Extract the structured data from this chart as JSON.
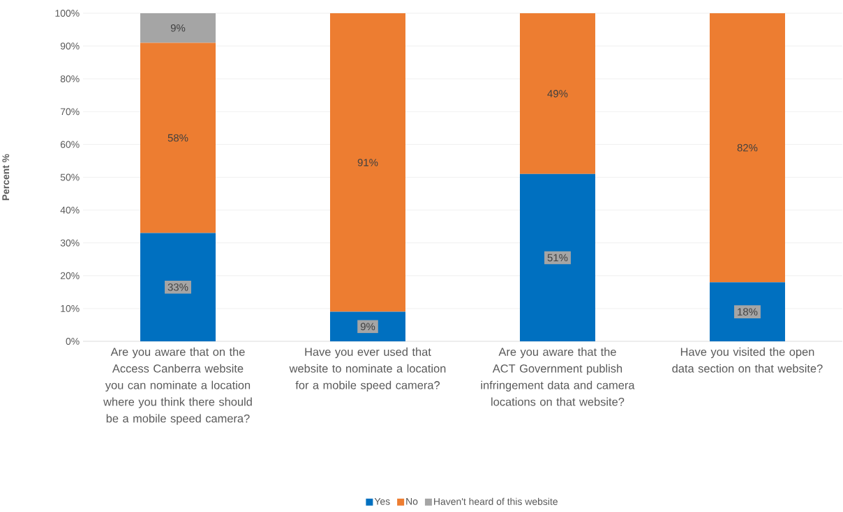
{
  "chart_data": {
    "type": "bar",
    "stacked": true,
    "ylabel": "Percent %",
    "categories": [
      "Are you aware that on the Access Canberra website you can nominate a location where you think there should be a mobile speed camera?",
      "Have you ever used that website to nominate a location for a mobile speed camera?",
      "Are you aware that the ACT Government publish infringement data and camera locations on that website?",
      "Have you visited the open data section on that website?"
    ],
    "series": [
      {
        "name": "Yes",
        "color": "#0070c0",
        "values": [
          33,
          9,
          51,
          18
        ],
        "value_labels": [
          "33%",
          "9%",
          "51%",
          "18%"
        ]
      },
      {
        "name": "No",
        "color": "#ed7d31",
        "values": [
          58,
          91,
          49,
          82
        ],
        "value_labels": [
          "58%",
          "91%",
          "49%",
          "82%"
        ]
      },
      {
        "name": "Haven't heard of this website",
        "color": "#a5a5a5",
        "values": [
          9,
          null,
          null,
          null
        ],
        "value_labels": [
          "9%",
          null,
          null,
          null
        ]
      }
    ],
    "ylim": [
      0,
      100
    ],
    "yticks": [
      {
        "value": 0,
        "label": "0%"
      },
      {
        "value": 10,
        "label": "10%"
      },
      {
        "value": 20,
        "label": "20%"
      },
      {
        "value": 30,
        "label": "30%"
      },
      {
        "value": 40,
        "label": "40%"
      },
      {
        "value": 50,
        "label": "50%"
      },
      {
        "value": 60,
        "label": "60%"
      },
      {
        "value": 70,
        "label": "70%"
      },
      {
        "value": 80,
        "label": "80%"
      },
      {
        "value": 90,
        "label": "90%"
      },
      {
        "value": 100,
        "label": "100%"
      }
    ],
    "grid": "y",
    "legend": "bottom"
  }
}
